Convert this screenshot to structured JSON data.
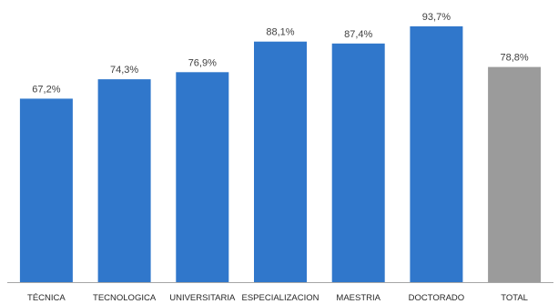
{
  "chart_data": {
    "type": "bar",
    "categories": [
      "TÉCNICA",
      "TECNOLOGICA",
      "UNIVERSITARIA",
      "ESPECIALIZACION",
      "MAESTRIA",
      "DOCTORADO",
      "TOTAL"
    ],
    "values": [
      67.2,
      74.3,
      76.9,
      88.1,
      87.4,
      93.7,
      78.8
    ],
    "data_labels": [
      "67,2%",
      "74,3%",
      "76,9%",
      "88,1%",
      "87,4%",
      "93,7%",
      "78,8%"
    ],
    "ylim": [
      0,
      100
    ],
    "grid": false,
    "legend": "none",
    "colors": {
      "default": "#3077CB",
      "highlight": "#9B9B9B",
      "axis": "#A6A6A6",
      "text": "#404040"
    },
    "highlighted_categories": [
      "TOTAL"
    ]
  }
}
